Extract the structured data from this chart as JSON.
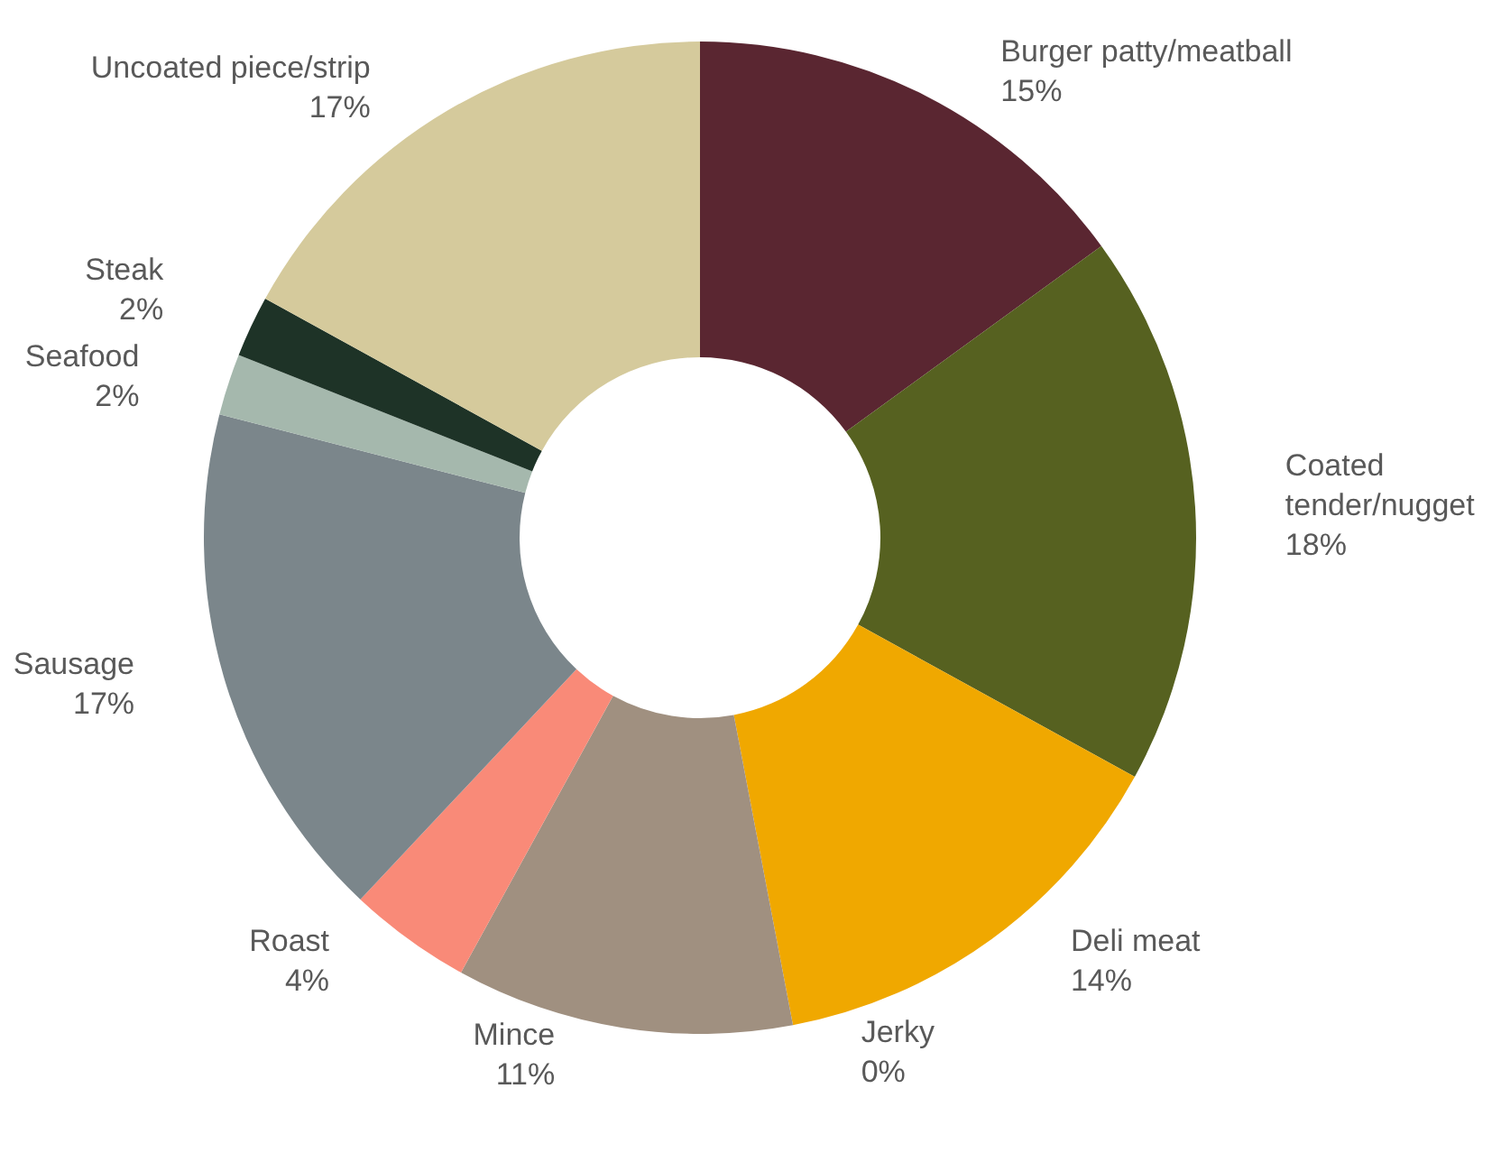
{
  "chart_data": {
    "type": "donut",
    "categories": [
      "Burger patty/meatball",
      "Coated tender/nugget",
      "Deli meat",
      "Jerky",
      "Mince",
      "Roast",
      "Sausage",
      "Seafood",
      "Steak",
      "Uncoated piece/strip"
    ],
    "values": [
      15,
      18,
      14,
      0,
      11,
      4,
      17,
      2,
      2,
      17
    ],
    "value_labels": [
      "15%",
      "18%",
      "14%",
      "0%",
      "11%",
      "4%",
      "17%",
      "2%",
      "2%",
      "17%"
    ],
    "colors": [
      "#5a2631",
      "#566120",
      "#f0a800",
      "#0e7a80",
      "#a09080",
      "#f98a78",
      "#7b868b",
      "#a5b8ad",
      "#1e3327",
      "#d5ca9c"
    ]
  }
}
